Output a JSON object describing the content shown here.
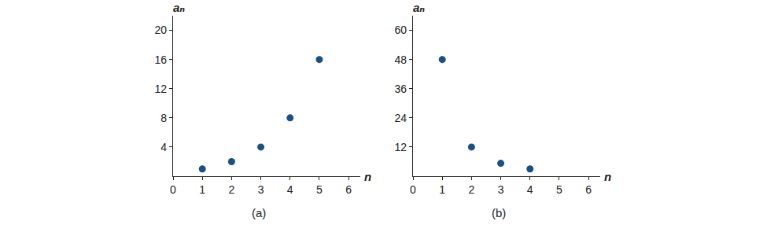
{
  "chart_data": [
    {
      "type": "scatter",
      "title": "(a)",
      "x_label": "n",
      "y_label": "aₙ",
      "x": [
        1,
        2,
        3,
        4,
        5
      ],
      "values": [
        1,
        2,
        4,
        8,
        16
      ],
      "color": "#1c4f82",
      "marker": "circle",
      "xlim": [
        0,
        6.4
      ],
      "ylim": [
        0,
        22
      ],
      "xticks": [
        0,
        1,
        2,
        3,
        4,
        5,
        6
      ],
      "yticks": [
        4,
        8,
        12,
        16,
        20
      ],
      "grid": false
    },
    {
      "type": "scatter",
      "title": "(b)",
      "x_label": "n",
      "y_label": "aₙ",
      "x": [
        1,
        2,
        3,
        4
      ],
      "values": [
        48,
        12,
        5.3,
        3
      ],
      "color": "#1c4f82",
      "marker": "circle",
      "xlim": [
        0,
        6.4
      ],
      "ylim": [
        0,
        66
      ],
      "xticks": [
        0,
        1,
        2,
        3,
        4,
        5,
        6
      ],
      "yticks": [
        12,
        24,
        36,
        48,
        60
      ],
      "grid": false
    }
  ]
}
